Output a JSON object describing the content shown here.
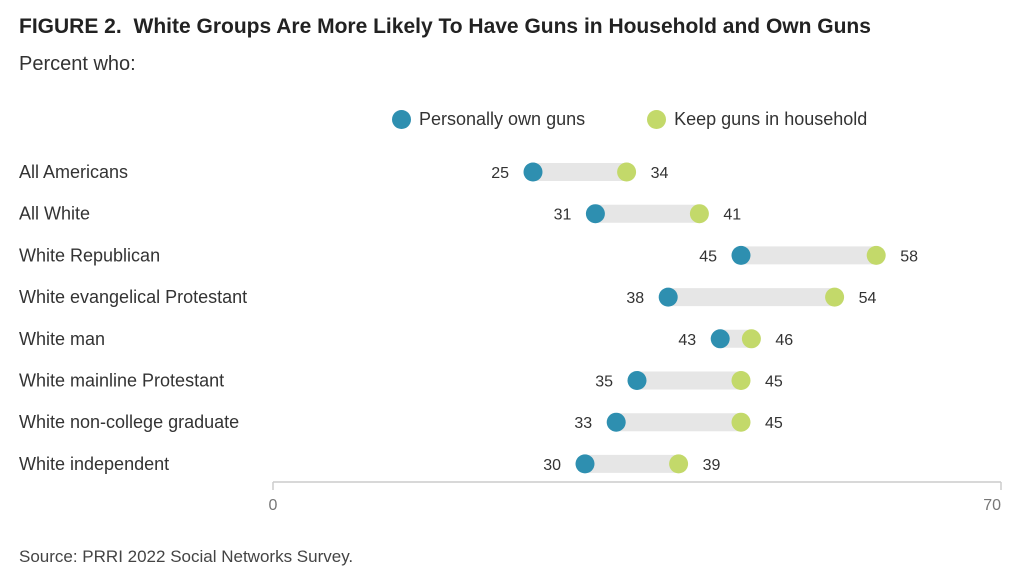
{
  "figure_label": "FIGURE 2.",
  "title": "White Groups Are More Likely To Have Guns in Household and Own Guns",
  "subtitle": "Percent who:",
  "source": "Source: PRRI 2022 Social Networks Survey.",
  "colors": {
    "own": "#2e8fb0",
    "household": "#c3d96a",
    "track": "#e6e6e6",
    "axis": "#cccccc"
  },
  "chart_data": {
    "type": "dumbbell",
    "title": "White Groups Are More Likely To Have Guns in Household and Own Guns",
    "subtitle": "Percent who:",
    "xlim": [
      0,
      70
    ],
    "x_ticks": [
      0,
      70
    ],
    "grid": false,
    "legend_position": "top",
    "categories": [
      "All Americans",
      "All White",
      "White Republican",
      "White evangelical Protestant",
      "White man",
      "White mainline Protestant",
      "White non-college graduate",
      "White independent"
    ],
    "series": [
      {
        "name": "Personally own guns",
        "values": [
          25,
          31,
          45,
          38,
          43,
          35,
          33,
          30
        ]
      },
      {
        "name": "Keep guns in household",
        "values": [
          34,
          41,
          58,
          54,
          46,
          45,
          45,
          39
        ]
      }
    ]
  }
}
